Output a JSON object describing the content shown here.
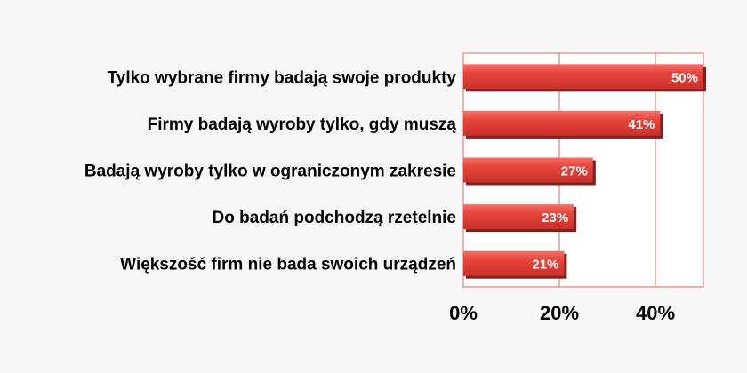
{
  "chart_data": {
    "type": "bar",
    "orientation": "horizontal",
    "categories": [
      "Tylko wybrane firmy badają swoje produkty",
      "Firmy badają wyroby tylko, gdy muszą",
      "Badają wyroby tylko w ograniczonym zakresie",
      "Do badań podchodzą rzetelnie",
      "Większość firm nie bada swoich urządzeń"
    ],
    "values": [
      50,
      41,
      27,
      23,
      21
    ],
    "data_labels": [
      "50%",
      "41%",
      "27%",
      "23%",
      "21%"
    ],
    "x_ticks": [
      0,
      20,
      40
    ],
    "x_tick_labels": [
      "0%",
      "20%",
      "40%"
    ],
    "xlim": [
      0,
      50
    ],
    "grid": "vertical",
    "bar_color": "#e8453c",
    "bar_shadow_color": "#8a1c1a",
    "grid_color": "#e06a5c",
    "title": "",
    "xlabel": "",
    "ylabel": ""
  }
}
